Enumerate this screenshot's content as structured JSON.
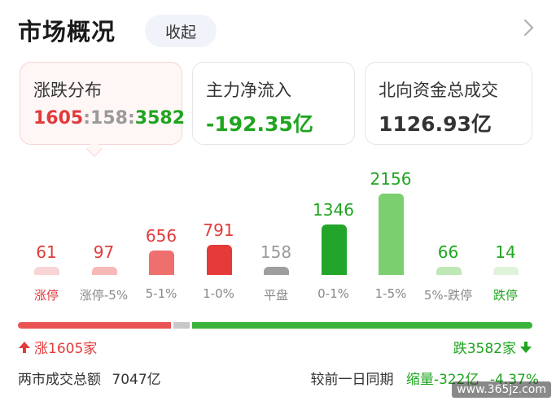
{
  "header": {
    "title": "市场概况",
    "collapse_label": "收起"
  },
  "cards": {
    "distribution": {
      "label": "涨跌分布",
      "up": "1605",
      "sep1": ":",
      "flat": "158",
      "sep2": ":",
      "down": "3582"
    },
    "main_flow": {
      "label": "主力净流入",
      "value": "-192.35亿"
    },
    "northbound": {
      "label": "北向资金总成交",
      "value": "1126.93亿"
    }
  },
  "distribution": {
    "columns": [
      {
        "count": "61",
        "value": 61,
        "label": "涨停",
        "color": "#f9d4d4",
        "text_color": "#e13b3b",
        "label_color": "#e13b3b"
      },
      {
        "count": "97",
        "value": 97,
        "label": "涨停-5%",
        "color": "#f7b8b8",
        "text_color": "#e13b3b",
        "label_color": "#888888"
      },
      {
        "count": "656",
        "value": 656,
        "label": "5-1%",
        "color": "#ef6f6f",
        "text_color": "#e13b3b",
        "label_color": "#888888"
      },
      {
        "count": "791",
        "value": 791,
        "label": "1-0%",
        "color": "#e63a3a",
        "text_color": "#e13b3b",
        "label_color": "#888888"
      },
      {
        "count": "158",
        "value": 158,
        "label": "平盘",
        "color": "#9e9e9e",
        "text_color": "#999999",
        "label_color": "#888888"
      },
      {
        "count": "1346",
        "value": 1346,
        "label": "0-1%",
        "color": "#22a52a",
        "text_color": "#1fa51f",
        "label_color": "#888888"
      },
      {
        "count": "2156",
        "value": 2156,
        "label": "1-5%",
        "color": "#7bcf6f",
        "text_color": "#1fa51f",
        "label_color": "#888888"
      },
      {
        "count": "66",
        "value": 66,
        "label": "5%-跌停",
        "color": "#bfe8b6",
        "text_color": "#1fa51f",
        "label_color": "#888888"
      },
      {
        "count": "14",
        "value": 14,
        "label": "跌停",
        "color": "#dff3da",
        "text_color": "#1fa51f",
        "label_color": "#1fa51f"
      }
    ]
  },
  "ratio": {
    "up": 1605,
    "flat": 158,
    "down": 3582,
    "up_color": "#e95353",
    "flat_color": "#c8c8c8",
    "down_color": "#3bb33b"
  },
  "updown": {
    "up_label": "涨1605家",
    "down_label": "跌3582家"
  },
  "footer": {
    "total_label": "两市成交总额",
    "total_value": "7047亿",
    "compare_label": "较前一日同期",
    "change_label": "缩量-322亿",
    "change_pct": "-4.37%"
  },
  "watermark": "www.365jz.com"
}
